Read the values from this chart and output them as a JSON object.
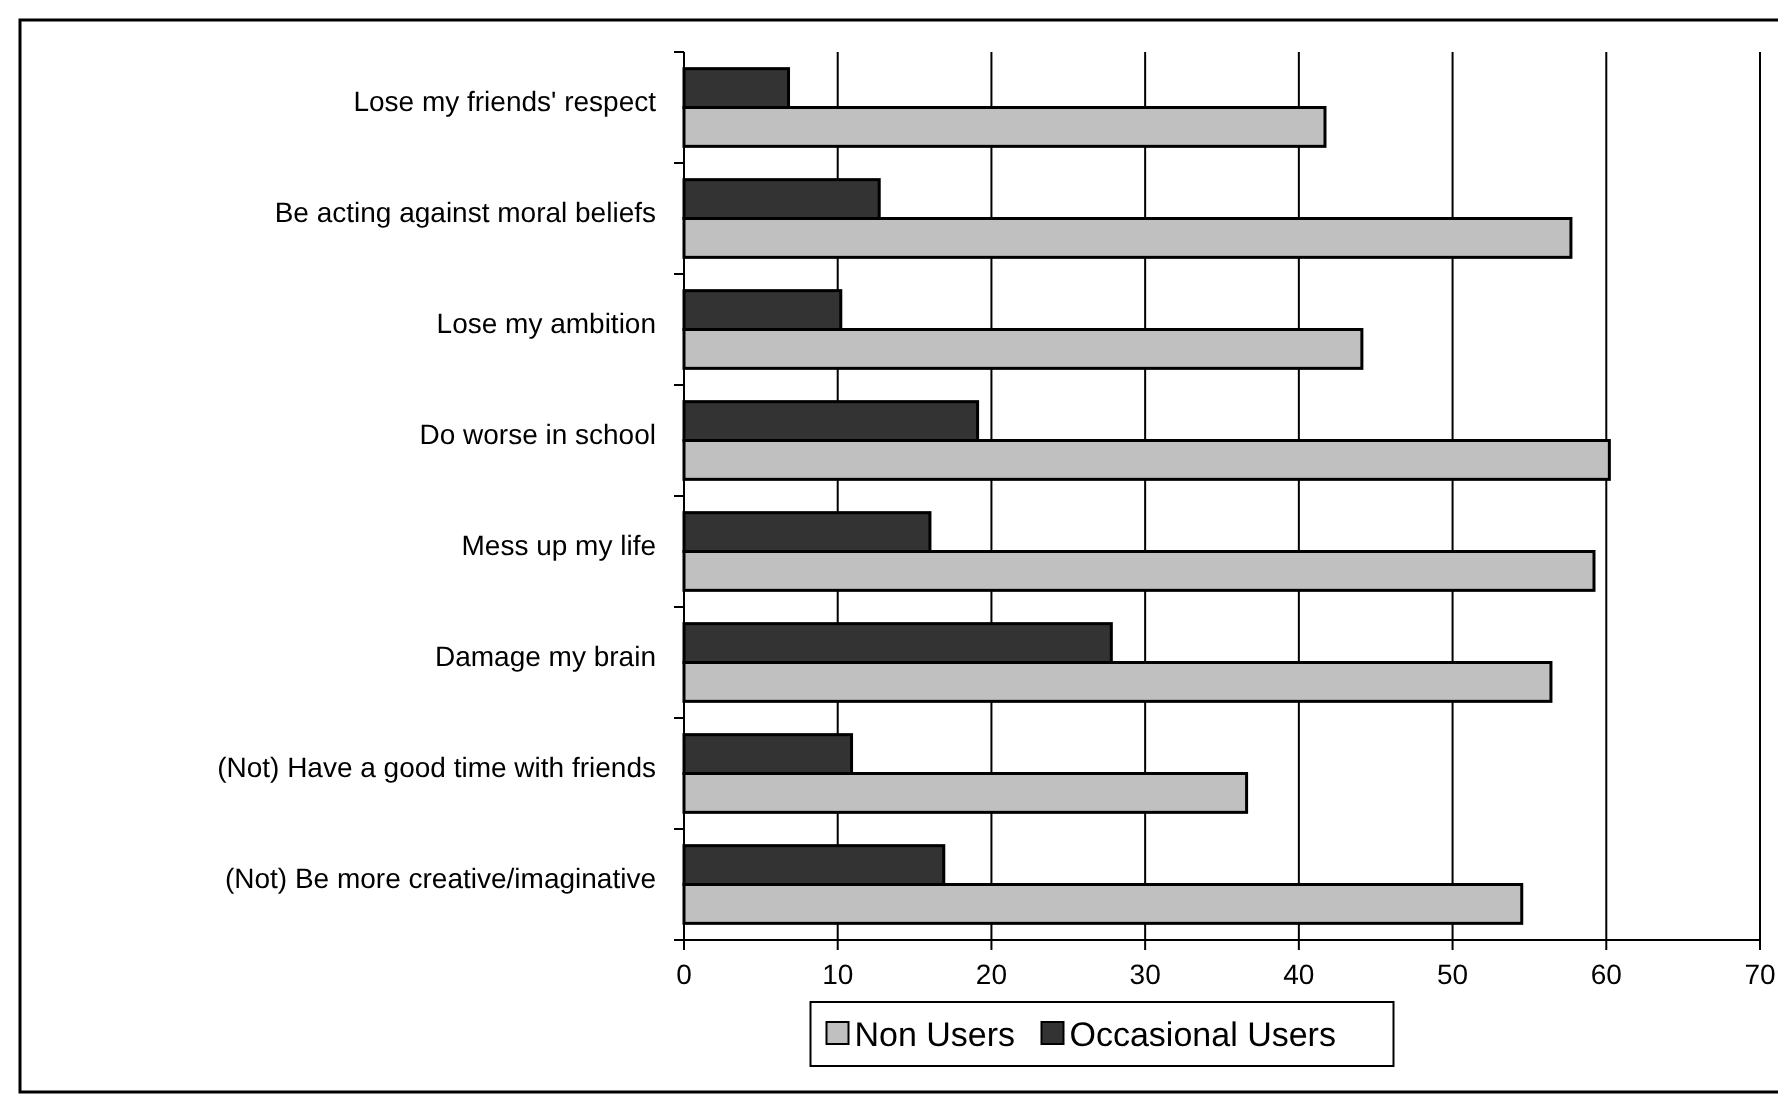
{
  "chart_data": {
    "type": "bar",
    "orientation": "horizontal",
    "categories": [
      "Lose my friends' respect",
      "Be acting against moral beliefs",
      "Lose my ambition",
      "Do worse in school",
      "Mess up my life",
      "Damage my brain",
      "(Not) Have a good time with friends",
      "(Not) Be more creative/imaginative"
    ],
    "series": [
      {
        "name": "Non Users",
        "color": "#c0c0c0",
        "values": [
          41.7,
          57.7,
          44.1,
          60.2,
          59.2,
          56.4,
          36.6,
          54.5
        ]
      },
      {
        "name": "Occasional Users",
        "color": "#333333",
        "values": [
          6.8,
          12.7,
          10.2,
          19.1,
          16.0,
          27.8,
          10.9,
          16.9
        ]
      }
    ],
    "xlim": [
      0,
      70
    ],
    "xticks": [
      0,
      10,
      20,
      30,
      40,
      50,
      60,
      70
    ],
    "grid": "x",
    "legend": "bottom"
  }
}
